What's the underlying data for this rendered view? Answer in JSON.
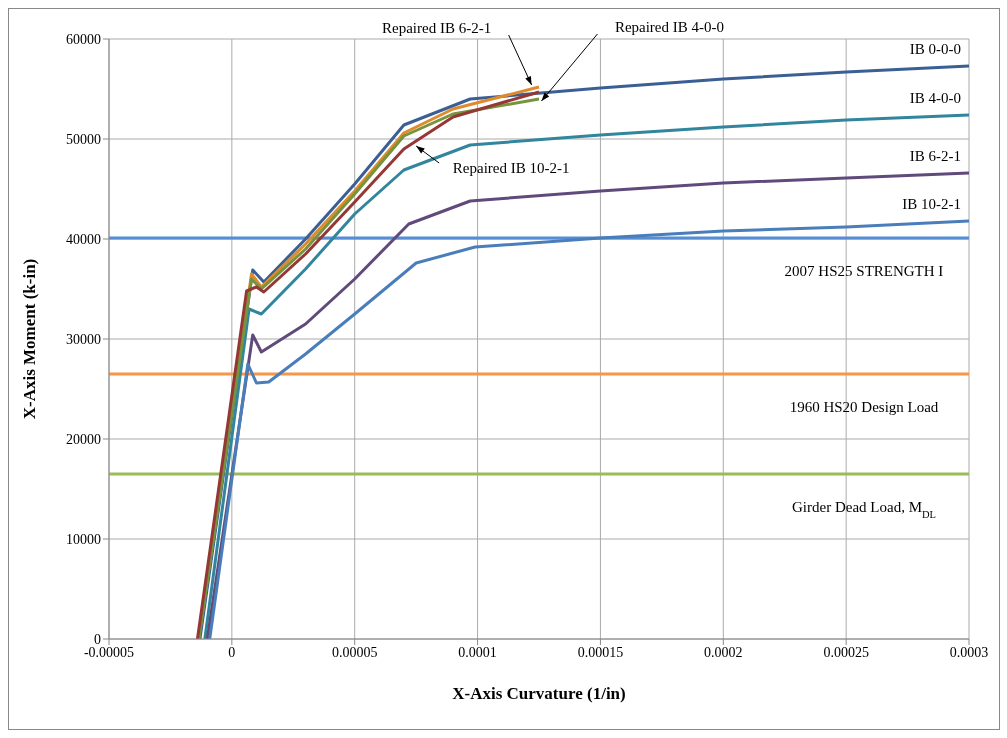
{
  "chart_data": {
    "type": "line",
    "xlabel": "X-Axis Curvature (1/in)",
    "ylabel": "X-Axis Moment (k-in)",
    "xlim": [
      -5e-05,
      0.0003
    ],
    "xticks": [
      {
        "value": -5e-05,
        "label": "-0.00005"
      },
      0,
      {
        "value": 5e-05,
        "label": "0.00005"
      },
      0.0001,
      0.00015,
      0.0002,
      0.00025,
      0.0003
    ],
    "ylim": [
      0,
      60000
    ],
    "yticks": [
      0,
      10000,
      20000,
      30000,
      40000,
      50000,
      60000
    ],
    "grid": true,
    "legend": false,
    "marker": "none",
    "line_style": "solid",
    "series": [
      {
        "name": "IB 0-0-0",
        "color": "#3a5f95",
        "x": [
          -1.3e-05,
          8.5e-06,
          1.3e-05,
          3e-05,
          5e-05,
          7e-05,
          9.7e-05,
          0.00015,
          0.0002,
          0.00025,
          0.0003
        ],
        "values": [
          0,
          36900,
          35700,
          40000,
          45500,
          51400,
          54000,
          55100,
          56000,
          56700,
          57300
        ]
      },
      {
        "name": "IB 4-0-0",
        "color": "#31859c",
        "x": [
          -1.1e-05,
          7e-06,
          1.2e-05,
          3e-05,
          5e-05,
          7e-05,
          9.7e-05,
          0.00015,
          0.0002,
          0.00025,
          0.0003
        ],
        "values": [
          0,
          33000,
          32500,
          37000,
          42500,
          46900,
          49400,
          50400,
          51200,
          51900,
          52400
        ]
      },
      {
        "name": "IB 6-2-1",
        "color": "#604a7b",
        "x": [
          -1e-05,
          8.5e-06,
          1.2e-05,
          3e-05,
          5e-05,
          7.2e-05,
          9.7e-05,
          0.00015,
          0.0002,
          0.00025,
          0.0003
        ],
        "values": [
          0,
          30400,
          28700,
          31500,
          36000,
          41500,
          43800,
          44800,
          45600,
          46100,
          46600
        ]
      },
      {
        "name": "IB 10-2-1",
        "color": "#4a7ebb",
        "x": [
          -9e-06,
          6.5e-06,
          1e-05,
          1.5e-05,
          3e-05,
          5e-05,
          7.5e-05,
          9.9e-05,
          0.00015,
          0.0002,
          0.00025,
          0.0003
        ],
        "values": [
          0,
          27500,
          25600,
          25700,
          28500,
          32500,
          37600,
          39200,
          40100,
          40800,
          41200,
          41800
        ]
      },
      {
        "color": "#e08a2c",
        "x": [
          -1.35e-05,
          8e-06,
          1.2e-05,
          3e-05,
          5e-05,
          7e-05,
          9e-05,
          0.000125
        ],
        "values": [
          0,
          36500,
          35200,
          39500,
          44800,
          50600,
          53000,
          55200
        ]
      },
      {
        "color": "#77933c",
        "x": [
          -1.35e-05,
          8e-06,
          1.2e-05,
          3e-05,
          5e-05,
          7e-05,
          9e-05,
          0.000125
        ],
        "values": [
          0,
          36000,
          35000,
          39000,
          44500,
          50300,
          52500,
          54000
        ]
      },
      {
        "color": "#953735",
        "x": [
          -1.4e-05,
          6e-06,
          1e-05,
          1.3e-05,
          3e-05,
          5e-05,
          7e-05,
          9e-05,
          0.000125
        ],
        "values": [
          0,
          34800,
          35200,
          34700,
          38500,
          43700,
          49000,
          52200,
          54700
        ]
      }
    ],
    "ref_lines": [
      {
        "axis": "y",
        "value": 40100,
        "label": "2007 HS25 STRENGTH I",
        "color": "#558ed5"
      },
      {
        "axis": "y",
        "value": 26500,
        "label": "1960 HS20 Design Load",
        "color": "#f79646"
      },
      {
        "axis": "y",
        "value": 16500,
        "label": "Girder Dead Load, M$_{DL}$",
        "color": "#9bbb59"
      }
    ],
    "annotations": [
      {
        "text": "Repaired IB 6-2-1",
        "x": 0.000122,
        "y": 55400
      },
      {
        "text": "Repaired IB 4-0-0",
        "x": 0.000126,
        "y": 53800
      },
      {
        "text": "Repaired IB 10-2-1",
        "x": 7.5e-05,
        "y": 49300
      }
    ]
  }
}
